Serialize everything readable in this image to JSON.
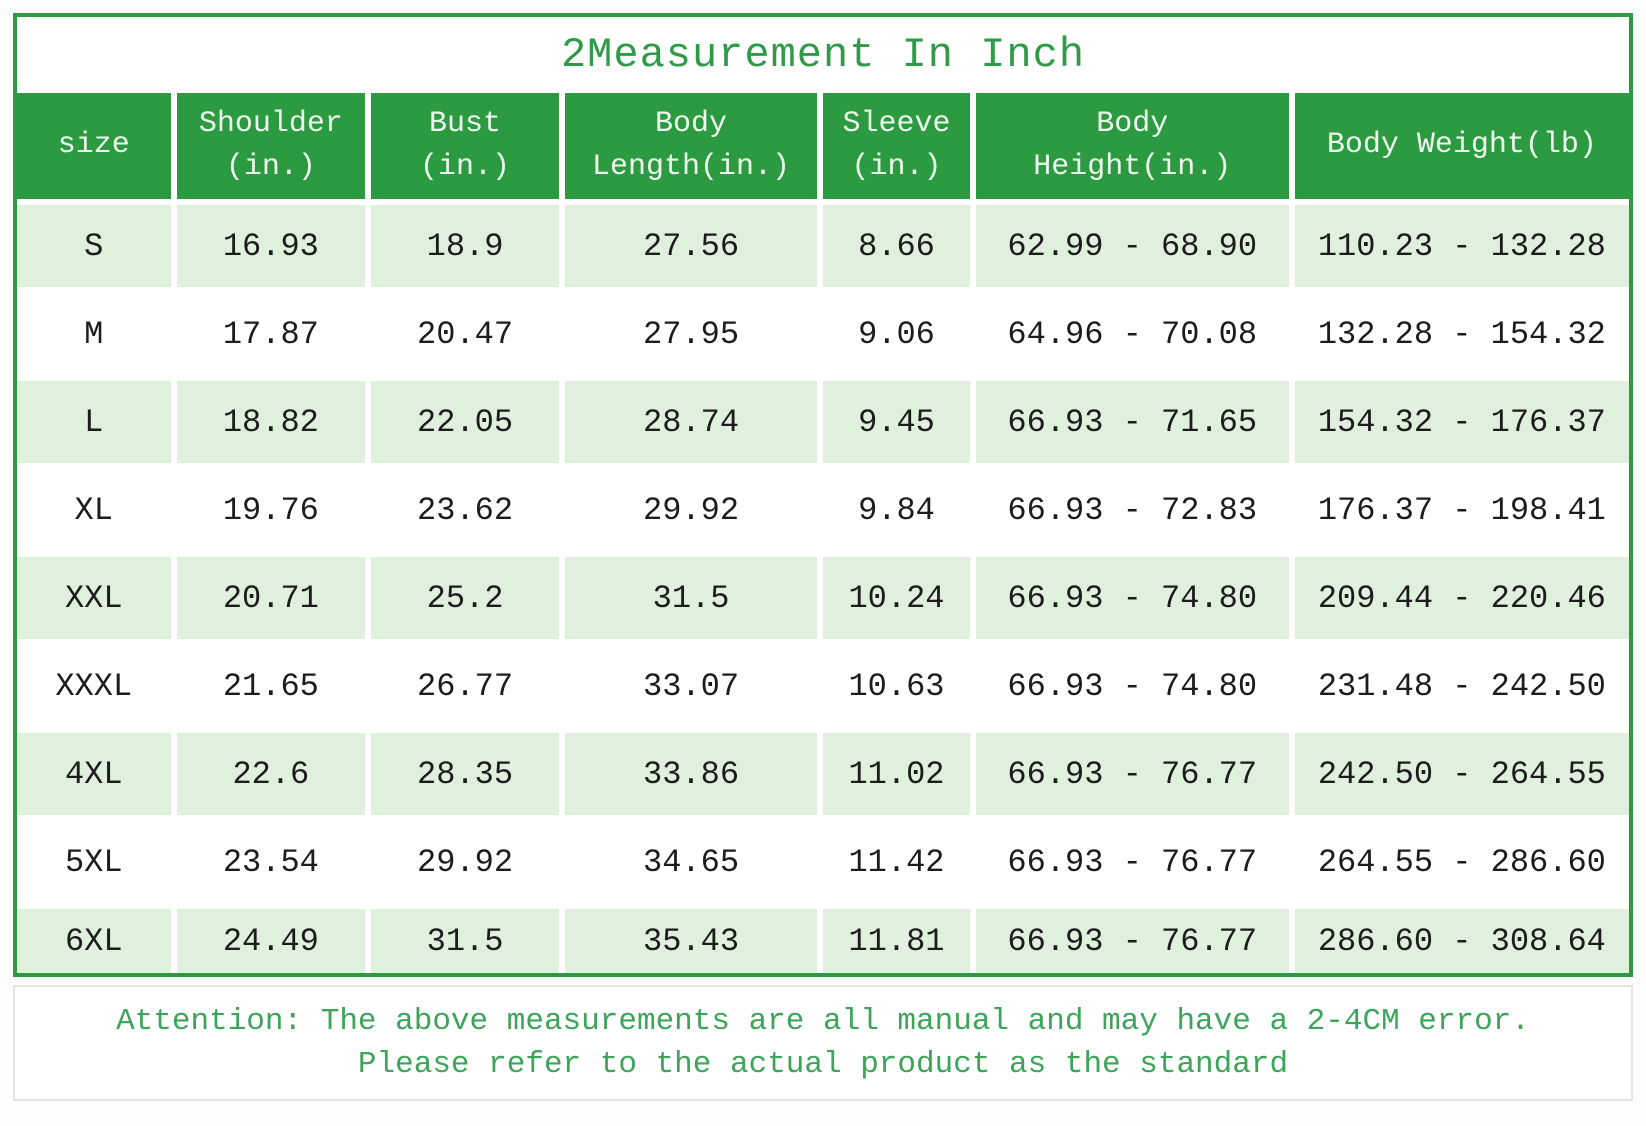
{
  "title": "2Measurement In Inch",
  "colors": {
    "header_green": "#2b9a40",
    "title_green": "#2f9a47",
    "row_light_green": "#dff0dc",
    "row_white": "#ffffff",
    "attention_green": "#3ea45a",
    "cell_text": "#1c1c1c",
    "header_text": "#eefaee"
  },
  "chart_data": {
    "type": "table",
    "title": "2Measurement In Inch",
    "columns": [
      "size",
      "Shoulder\n(in.)",
      "Bust\n(in.)",
      "Body\nLength(in.)",
      "Sleeve\n(in.)",
      "Body\nHeight(in.)",
      "Body Weight(lb)"
    ],
    "rows": [
      [
        "S",
        "16.93",
        "18.9",
        "27.56",
        "8.66",
        "62.99 - 68.90",
        "110.23 - 132.28"
      ],
      [
        "M",
        "17.87",
        "20.47",
        "27.95",
        "9.06",
        "64.96 - 70.08",
        "132.28 - 154.32"
      ],
      [
        "L",
        "18.82",
        "22.05",
        "28.74",
        "9.45",
        "66.93 - 71.65",
        "154.32 - 176.37"
      ],
      [
        "XL",
        "19.76",
        "23.62",
        "29.92",
        "9.84",
        "66.93 - 72.83",
        "176.37 - 198.41"
      ],
      [
        "XXL",
        "20.71",
        "25.2",
        "31.5",
        "10.24",
        "66.93 - 74.80",
        "209.44 - 220.46"
      ],
      [
        "XXXL",
        "21.65",
        "26.77",
        "33.07",
        "10.63",
        "66.93 - 74.80",
        "231.48 - 242.50"
      ],
      [
        "4XL",
        "22.6",
        "28.35",
        "33.86",
        "11.02",
        "66.93 - 76.77",
        "242.50 - 264.55"
      ],
      [
        "5XL",
        "23.54",
        "29.92",
        "34.65",
        "11.42",
        "66.93 - 76.77",
        "264.55 - 286.60"
      ],
      [
        "6XL",
        "24.49",
        "31.5",
        "35.43",
        "11.81",
        "66.93 - 76.77",
        "286.60 - 308.64"
      ]
    ]
  },
  "attention": {
    "line1": "Attention: The above measurements are all manual and may have a 2-4CM error.",
    "line2": "Please refer to the actual product as the standard"
  }
}
